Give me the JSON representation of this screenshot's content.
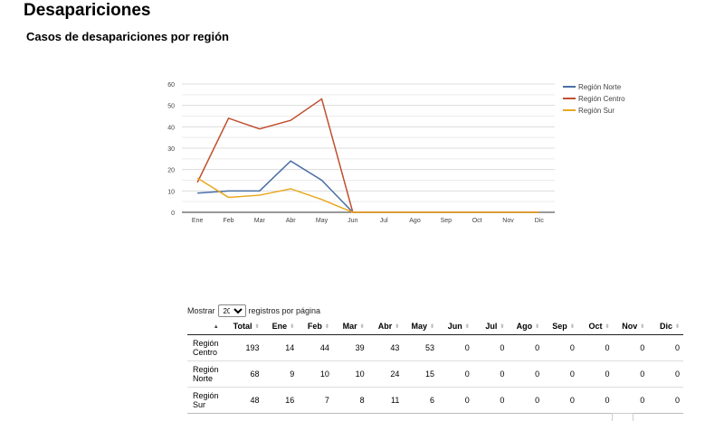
{
  "page_title": "Desapariciones",
  "section_title": "Casos de desapariciones por región",
  "chart_data": {
    "type": "line",
    "categories": [
      "Ene",
      "Feb",
      "Mar",
      "Abr",
      "May",
      "Jun",
      "Jul",
      "Ago",
      "Sep",
      "Oct",
      "Nov",
      "Dic"
    ],
    "series": [
      {
        "name": "Región Norte",
        "color": "#4a6fa5",
        "values": [
          9,
          10,
          10,
          24,
          15,
          0,
          0,
          0,
          0,
          0,
          0,
          0
        ]
      },
      {
        "name": "Región Centro",
        "color": "#c0502f",
        "values": [
          14,
          44,
          39,
          43,
          53,
          0,
          0,
          0,
          0,
          0,
          0,
          0
        ]
      },
      {
        "name": "Región Sur",
        "color": "#e8a820",
        "values": [
          16,
          7,
          8,
          11,
          6,
          0,
          0,
          0,
          0,
          0,
          0,
          0
        ]
      }
    ],
    "ylim": [
      0,
      60
    ],
    "yticks": [
      0,
      10,
      20,
      30,
      40,
      50,
      60
    ],
    "grid": true,
    "legend": "right"
  },
  "table": {
    "length_prefix": "Mostrar",
    "length_value": "20",
    "length_suffix": "registros por página",
    "columns": [
      "",
      "Total",
      "Ene",
      "Feb",
      "Mar",
      "Abr",
      "May",
      "Jun",
      "Jul",
      "Ago",
      "Sep",
      "Oct",
      "Nov",
      "Dic"
    ],
    "rows": [
      {
        "region_line1": "Región",
        "region_line2": "Centro",
        "cells": [
          "193",
          "14",
          "44",
          "39",
          "43",
          "53",
          "0",
          "0",
          "0",
          "0",
          "0",
          "0",
          "0"
        ]
      },
      {
        "region_line1": "Región",
        "region_line2": "Norte",
        "cells": [
          "68",
          "9",
          "10",
          "10",
          "24",
          "15",
          "0",
          "0",
          "0",
          "0",
          "0",
          "0",
          "0"
        ]
      },
      {
        "region_line1": "Región",
        "region_line2": "Sur",
        "cells": [
          "48",
          "16",
          "7",
          "8",
          "11",
          "6",
          "0",
          "0",
          "0",
          "0",
          "0",
          "0",
          "0"
        ]
      }
    ]
  }
}
